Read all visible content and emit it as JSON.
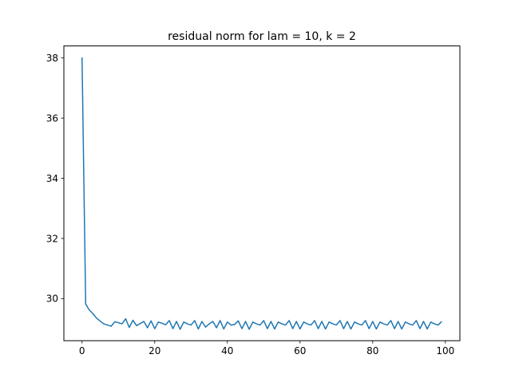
{
  "chart_data": {
    "type": "line",
    "title": "residual norm for lam = 10, k = 2",
    "xlabel": "",
    "ylabel": "",
    "xlim": [
      -5,
      104
    ],
    "ylim": [
      28.6,
      38.4
    ],
    "xticks": [
      0,
      20,
      40,
      60,
      80,
      100
    ],
    "yticks": [
      30,
      32,
      34,
      36,
      38
    ],
    "xtick_labels": [
      "0",
      "20",
      "40",
      "60",
      "80",
      "100"
    ],
    "ytick_labels": [
      "30",
      "32",
      "34",
      "36",
      "38"
    ],
    "grid": false,
    "series": [
      {
        "color": "#1f77b4",
        "x": [
          0,
          1,
          2,
          3,
          4,
          5,
          6,
          7,
          8,
          9,
          10,
          11,
          12,
          13,
          14,
          15,
          16,
          17,
          18,
          19,
          20,
          21,
          22,
          23,
          24,
          25,
          26,
          27,
          28,
          29,
          30,
          31,
          32,
          33,
          34,
          35,
          36,
          37,
          38,
          39,
          40,
          41,
          42,
          43,
          44,
          45,
          46,
          47,
          48,
          49,
          50,
          51,
          52,
          53,
          54,
          55,
          56,
          57,
          58,
          59,
          60,
          61,
          62,
          63,
          64,
          65,
          66,
          67,
          68,
          69,
          70,
          71,
          72,
          73,
          74,
          75,
          76,
          77,
          78,
          79,
          80,
          81,
          82,
          83,
          84,
          85,
          86,
          87,
          88,
          89,
          90,
          91,
          92,
          93,
          94,
          95,
          96,
          97,
          98,
          99
        ],
        "y": [
          38.02,
          29.82,
          29.62,
          29.5,
          29.35,
          29.25,
          29.16,
          29.12,
          29.08,
          29.23,
          29.2,
          29.16,
          29.33,
          29.04,
          29.28,
          29.1,
          29.17,
          29.24,
          29.03,
          29.26,
          29.0,
          29.22,
          29.18,
          29.13,
          29.27,
          29.0,
          29.24,
          28.98,
          29.22,
          29.16,
          29.12,
          29.27,
          28.99,
          29.24,
          29.05,
          29.16,
          29.24,
          29.03,
          29.27,
          28.99,
          29.22,
          29.12,
          29.14,
          29.26,
          29.0,
          29.24,
          28.98,
          29.22,
          29.16,
          29.12,
          29.27,
          29.0,
          29.24,
          28.99,
          29.22,
          29.16,
          29.12,
          29.27,
          29.0,
          29.24,
          28.99,
          29.22,
          29.16,
          29.12,
          29.27,
          29.0,
          29.24,
          28.99,
          29.22,
          29.16,
          29.12,
          29.27,
          29.0,
          29.24,
          28.99,
          29.22,
          29.16,
          29.12,
          29.27,
          29.0,
          29.24,
          28.99,
          29.22,
          29.16,
          29.12,
          29.27,
          29.0,
          29.24,
          28.99,
          29.22,
          29.16,
          29.12,
          29.27,
          29.0,
          29.24,
          28.99,
          29.22,
          29.16,
          29.12,
          29.24
        ]
      }
    ]
  }
}
